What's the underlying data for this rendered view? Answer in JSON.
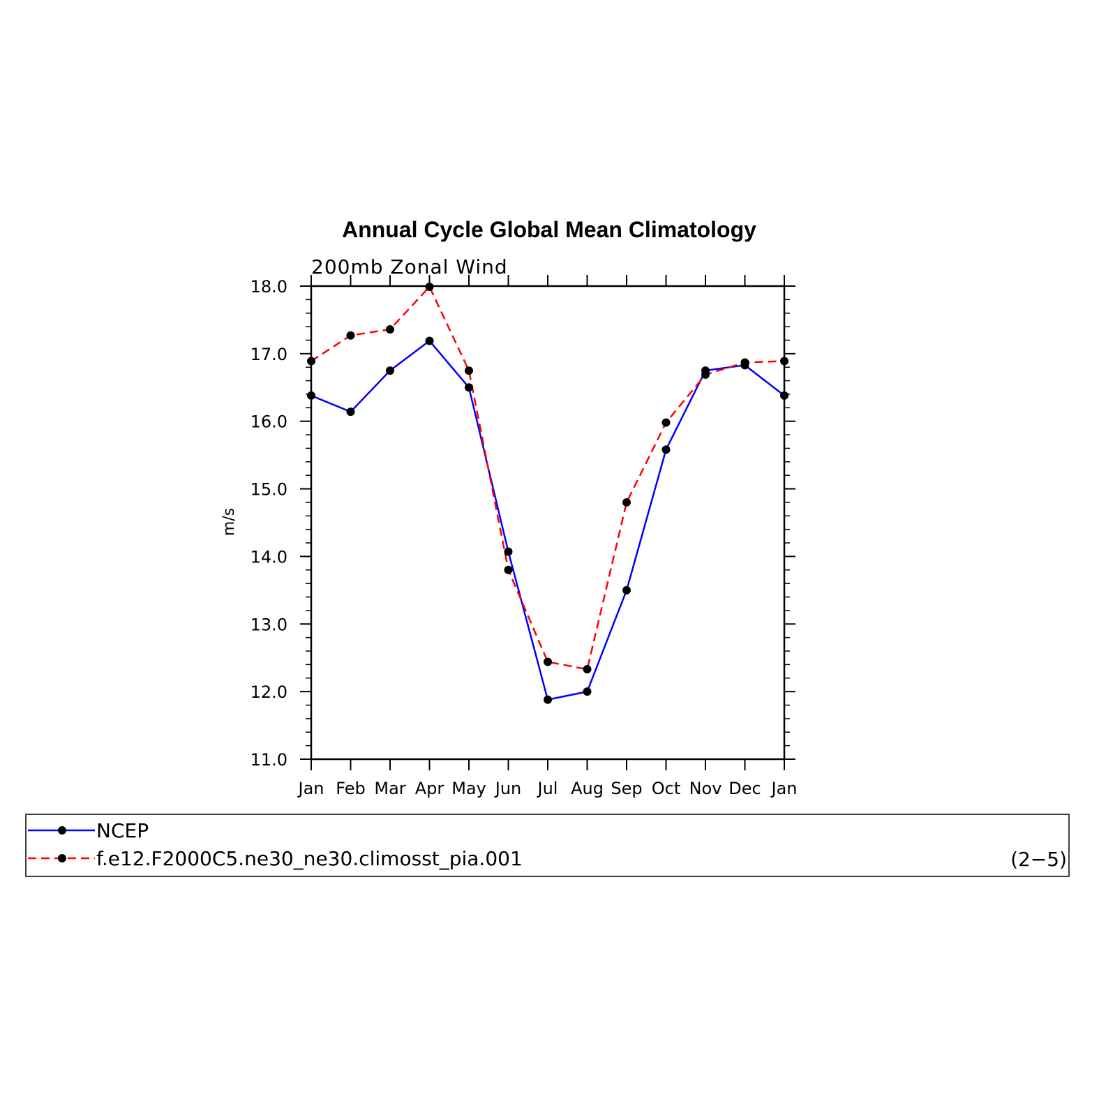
{
  "chart_data": {
    "type": "line",
    "title": "Annual Cycle Global Mean Climatology",
    "subtitle": "200mb Zonal Wind",
    "ylabel": "m/s",
    "xlabel": "",
    "categories": [
      "Jan",
      "Feb",
      "Mar",
      "Apr",
      "May",
      "Jun",
      "Jul",
      "Aug",
      "Sep",
      "Oct",
      "Nov",
      "Dec",
      "Jan"
    ],
    "ylim": [
      11.0,
      18.0
    ],
    "yticks": [
      "11.0",
      "12.0",
      "13.0",
      "14.0",
      "15.0",
      "16.0",
      "17.0",
      "18.0"
    ],
    "grid": false,
    "legend_position": "bottom",
    "series": [
      {
        "name": "NCEP",
        "color": "#0000ff",
        "dash": "solid",
        "values": [
          16.38,
          16.14,
          16.75,
          17.19,
          16.5,
          14.07,
          11.88,
          12.0,
          13.5,
          15.58,
          16.75,
          16.83,
          16.38
        ]
      },
      {
        "name": "f.e12.F2000C5.ne30_ne30.climosst_pia.001",
        "color": "#ff0000",
        "dash": "dashed",
        "values": [
          16.89,
          17.27,
          17.36,
          17.99,
          16.75,
          13.8,
          12.44,
          12.33,
          14.8,
          15.98,
          16.69,
          16.87,
          16.89
        ]
      }
    ],
    "panel_label": "(2−5)"
  }
}
